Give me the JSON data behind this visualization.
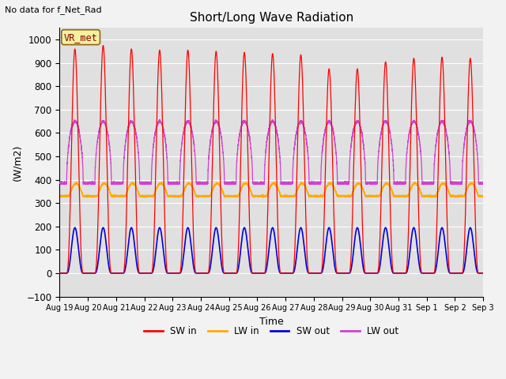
{
  "title": "Short/Long Wave Radiation",
  "ylabel": "(W/m2)",
  "xlabel": "Time",
  "ylim": [
    -100,
    1050
  ],
  "x_tick_labels": [
    "Aug 19",
    "Aug 20",
    "Aug 21",
    "Aug 22",
    "Aug 23",
    "Aug 24",
    "Aug 25",
    "Aug 26",
    "Aug 27",
    "Aug 28",
    "Aug 29",
    "Aug 30",
    "Aug 31",
    "Sep 1",
    "Sep 2",
    "Sep 3"
  ],
  "no_data_text": "No data for f_Net_Rad",
  "station_label": "VR_met",
  "colors": {
    "SW_in": "#ff0000",
    "LW_in": "#ffaa00",
    "SW_out": "#0000dd",
    "LW_out": "#cc44cc"
  },
  "legend_labels": [
    "SW in",
    "LW in",
    "SW out",
    "LW out"
  ],
  "background_color": "#e0e0e0",
  "grid_color": "#ffffff",
  "n_days": 15,
  "sw_in_peaks": [
    960,
    975,
    960,
    955,
    955,
    950,
    945,
    940,
    935,
    875,
    875,
    905,
    920,
    925,
    920
  ],
  "sw_out_peak": 195,
  "lw_in_base": 330,
  "lw_in_day_bump": 55,
  "lw_out_night": 385,
  "lw_out_day_peak": 650
}
